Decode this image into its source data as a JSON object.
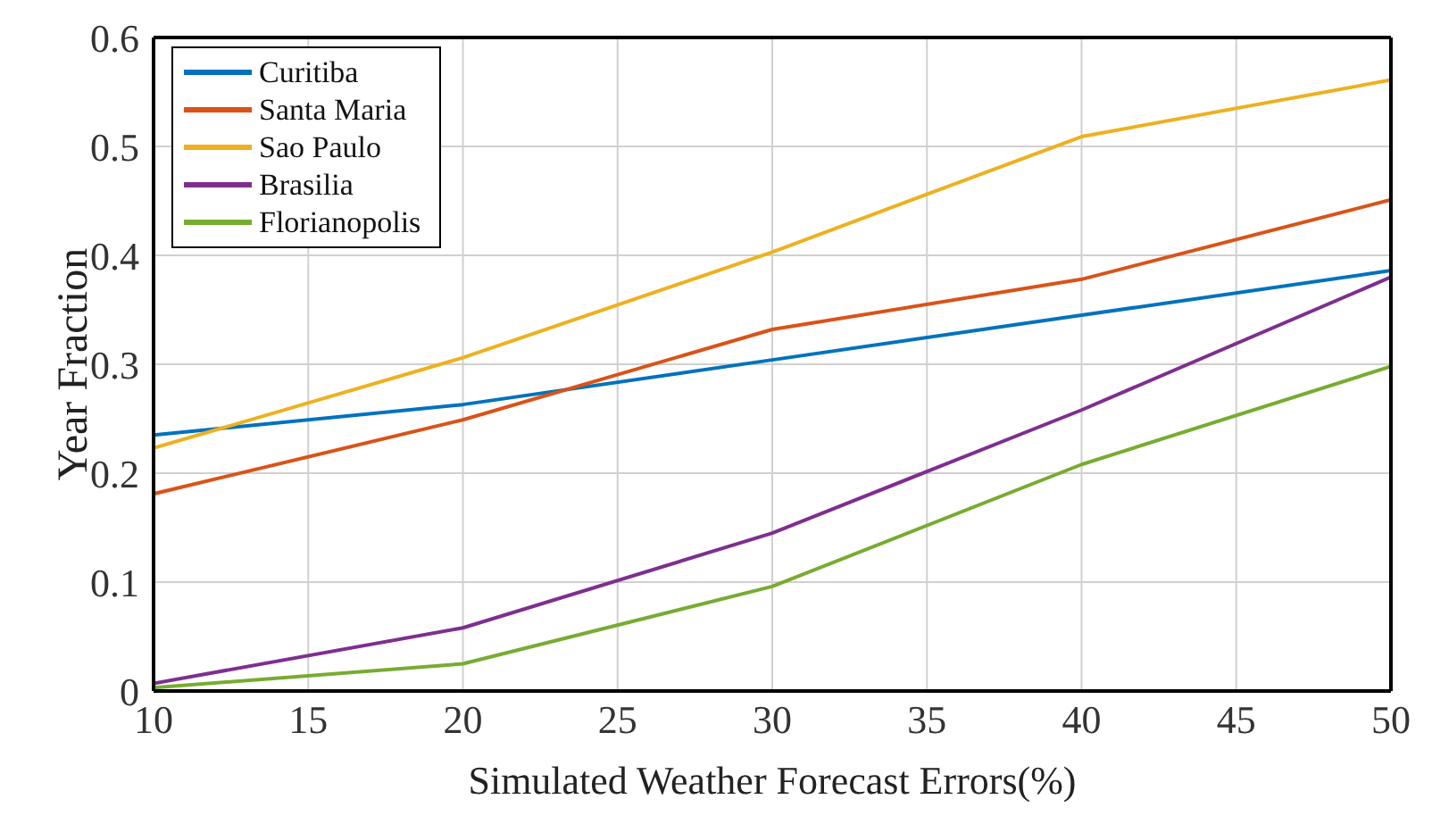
{
  "chart_data": {
    "type": "line",
    "xlabel": "Simulated Weather Forecast Errors(%)",
    "ylabel": "Year Fraction",
    "x": [
      10,
      20,
      30,
      40,
      50
    ],
    "series": [
      {
        "name": "Curitiba",
        "color": "#0072bd",
        "values": [
          0.235,
          0.263,
          0.304,
          0.345,
          0.386
        ]
      },
      {
        "name": "Santa Maria",
        "color": "#d95319",
        "values": [
          0.181,
          0.249,
          0.332,
          0.378,
          0.451
        ]
      },
      {
        "name": "Sao Paulo",
        "color": "#edb120",
        "values": [
          0.223,
          0.306,
          0.403,
          0.509,
          0.561
        ]
      },
      {
        "name": "Brasilia",
        "color": "#7e2f8e",
        "values": [
          0.007,
          0.058,
          0.145,
          0.258,
          0.38
        ]
      },
      {
        "name": "Florianopolis",
        "color": "#77ac30",
        "values": [
          0.003,
          0.025,
          0.096,
          0.208,
          0.298
        ]
      }
    ],
    "xlim": [
      10,
      50
    ],
    "xticks": [
      10,
      15,
      20,
      25,
      30,
      35,
      40,
      45,
      50
    ],
    "ylim": [
      0,
      0.6
    ],
    "yticks": [
      0,
      0.1,
      0.2,
      0.3,
      0.4,
      0.5,
      0.6
    ],
    "grid": true,
    "legend": "top left",
    "marker": "none",
    "line_style": "solid"
  }
}
